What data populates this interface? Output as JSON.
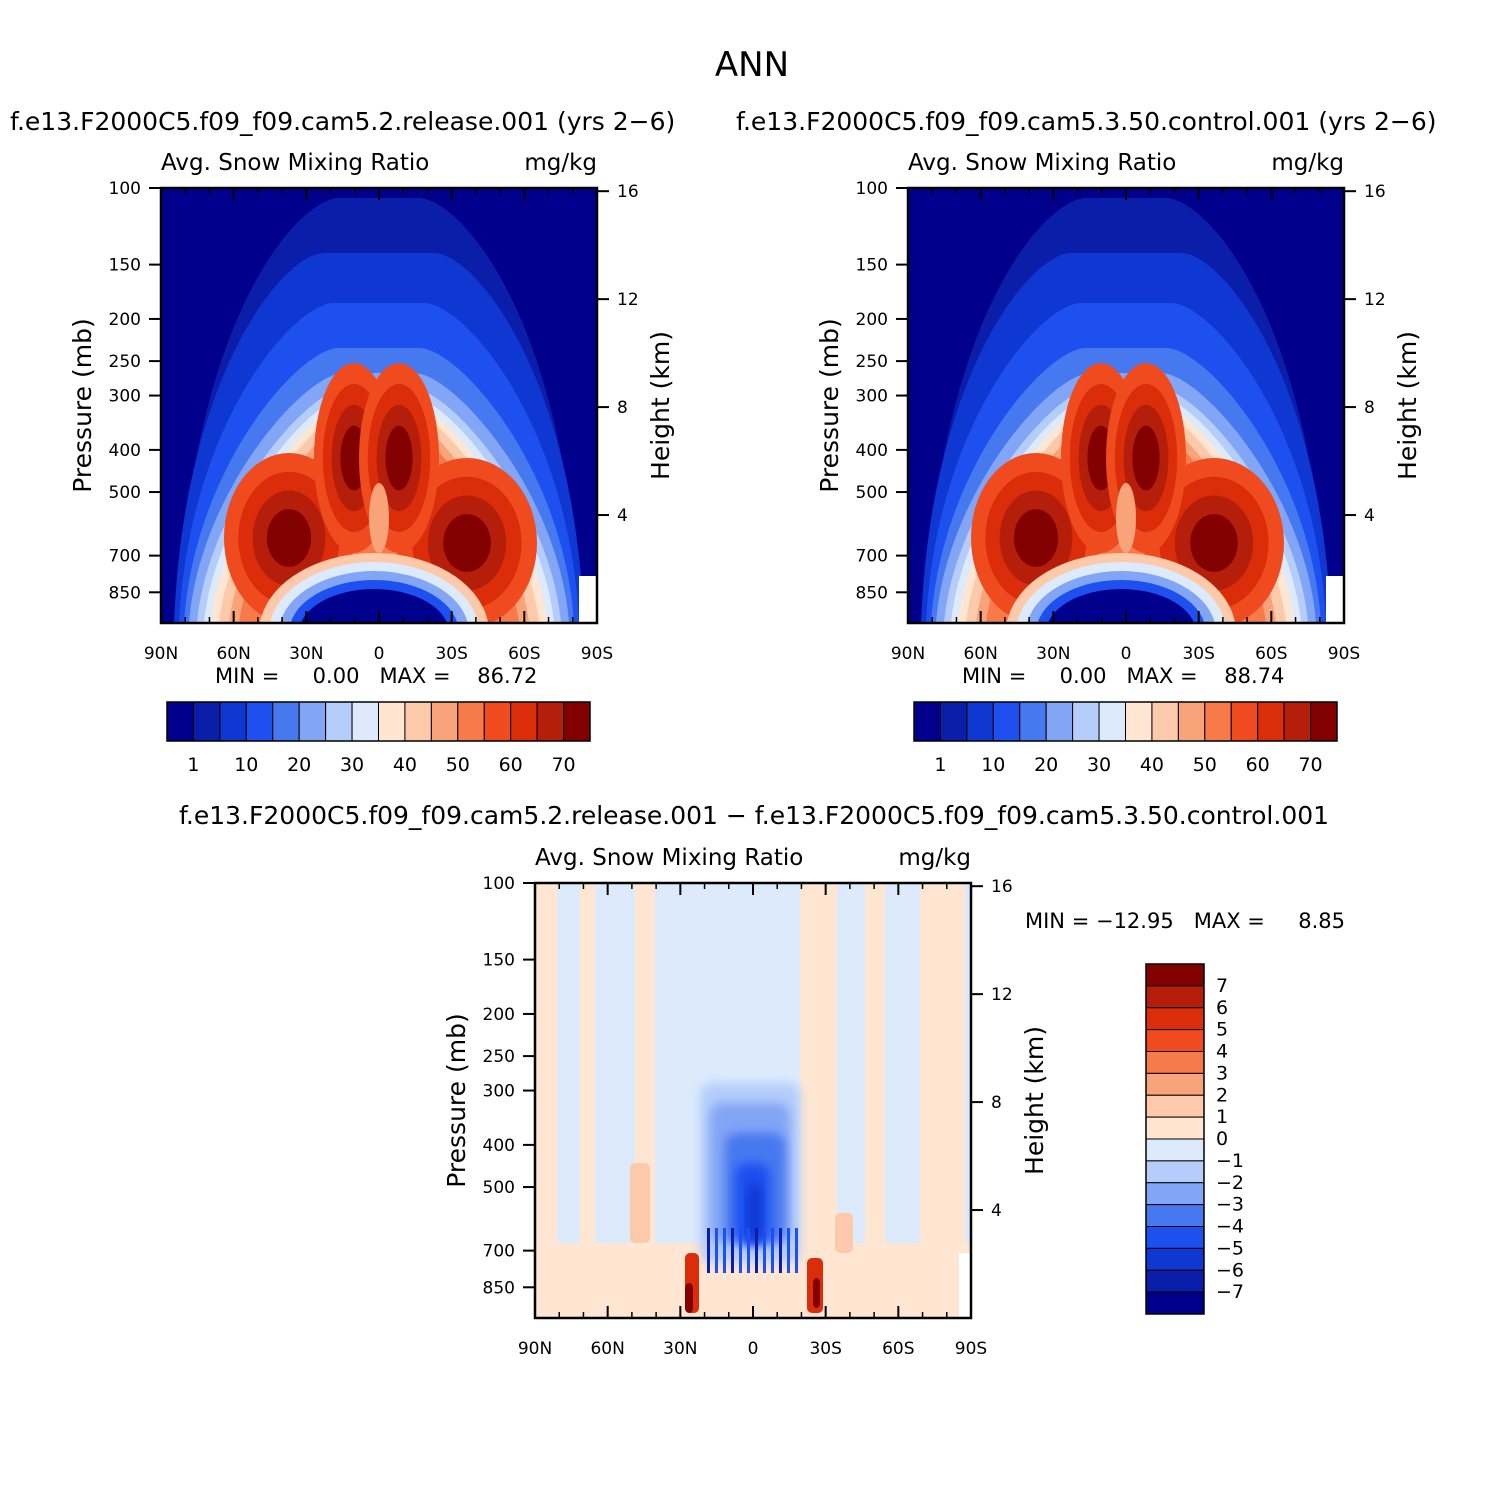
{
  "figure_title": "ANN",
  "colors": {
    "abs_scale": [
      "#00008c",
      "#0a1eaa",
      "#0f37d2",
      "#1e50f0",
      "#4678f0",
      "#82a5f5",
      "#b4cdfa",
      "#dceafc",
      "#fee6d2",
      "#fccaaa",
      "#f9a37a",
      "#f77a4a",
      "#f04b1e",
      "#dc2d0a",
      "#b41e0a",
      "#820000"
    ],
    "diff_scale": [
      "#00008c",
      "#0a1eaa",
      "#0f37d2",
      "#1e50f0",
      "#4678f0",
      "#82a5f5",
      "#b4cdfa",
      "#dceafc",
      "#fee6d2",
      "#fccaaa",
      "#f9a37a",
      "#f77a4a",
      "#f04b1e",
      "#dc2d0a",
      "#b41e0a",
      "#820000"
    ]
  },
  "panels": [
    {
      "title": "f.e13.F2000C5.f09_f09.cam5.2.release.001  (yrs 2−6)",
      "left_label": "Avg. Snow Mixing Ratio",
      "right_label": "mg/kg",
      "y_title": "Pressure (mb)",
      "y2_title": "Height (km)",
      "stats": "MIN =     0.00   MAX =    86.72",
      "colorbar_labels": [
        "1",
        "10",
        "20",
        "30",
        "40",
        "50",
        "60",
        "70"
      ]
    },
    {
      "title": "f.e13.F2000C5.f09_f09.cam5.3.50.control.001  (yrs 2−6)",
      "left_label": "Avg. Snow Mixing Ratio",
      "right_label": "mg/kg",
      "y_title": "Pressure (mb)",
      "y2_title": "Height (km)",
      "stats": "MIN =     0.00   MAX =    88.74",
      "colorbar_labels": [
        "1",
        "10",
        "20",
        "30",
        "40",
        "50",
        "60",
        "70"
      ]
    },
    {
      "title": "f.e13.F2000C5.f09_f09.cam5.2.release.001  −  f.e13.F2000C5.f09_f09.cam5.3.50.control.001",
      "left_label": "Avg. Snow Mixing Ratio",
      "right_label": "mg/kg",
      "y_title": "Pressure (mb)",
      "y2_title": "Height (km)",
      "stats": "MIN = −12.95   MAX =     8.85",
      "colorbar_labels": [
        "7",
        "6",
        "5",
        "4",
        "3",
        "2",
        "1",
        "0",
        "−1",
        "−2",
        "−3",
        "−4",
        "−5",
        "−6",
        "−7"
      ]
    }
  ],
  "chart_data": [
    {
      "type": "heatmap",
      "title": "f.e13.F2000C5.f09_f09.cam5.2.release.001  (yrs 2−6)",
      "xlabel": "",
      "ylabel": "Pressure (mb)",
      "y2label": "Height (km)",
      "x_ticks": [
        "90N",
        "60N",
        "30N",
        "0",
        "30S",
        "60S",
        "90S"
      ],
      "y_ticks": [
        100,
        150,
        200,
        250,
        300,
        400,
        500,
        700,
        850
      ],
      "y2_ticks": [
        16,
        12,
        8,
        4
      ],
      "y_scale": "log",
      "ylim": [
        1000,
        100
      ],
      "units": "mg/kg",
      "min": 0.0,
      "max": 86.72,
      "levels": [
        1,
        5,
        10,
        15,
        20,
        25,
        30,
        35,
        40,
        45,
        50,
        55,
        60,
        65,
        70
      ],
      "features": [
        {
          "desc": "max lobe",
          "lat": -35,
          "p": 550,
          "value": 75
        },
        {
          "desc": "max lobe",
          "lat": 40,
          "p": 600,
          "value": 75
        },
        {
          "desc": "upper cores",
          "lat": 10,
          "p": 400,
          "value": 72
        },
        {
          "desc": "upper cores",
          "lat": -5,
          "p": 400,
          "value": 70
        },
        {
          "desc": "low-level minimum",
          "lat": 0,
          "p": 900,
          "value": 0
        }
      ]
    },
    {
      "type": "heatmap",
      "title": "f.e13.F2000C5.f09_f09.cam5.3.50.control.001  (yrs 2−6)",
      "xlabel": "",
      "ylabel": "Pressure (mb)",
      "y2label": "Height (km)",
      "x_ticks": [
        "90N",
        "60N",
        "30N",
        "0",
        "30S",
        "60S",
        "90S"
      ],
      "y_ticks": [
        100,
        150,
        200,
        250,
        300,
        400,
        500,
        700,
        850
      ],
      "y2_ticks": [
        16,
        12,
        8,
        4
      ],
      "y_scale": "log",
      "ylim": [
        1000,
        100
      ],
      "units": "mg/kg",
      "min": 0.0,
      "max": 88.74,
      "levels": [
        1,
        5,
        10,
        15,
        20,
        25,
        30,
        35,
        40,
        45,
        50,
        55,
        60,
        65,
        70
      ],
      "features": [
        {
          "desc": "max lobe",
          "lat": -35,
          "p": 550,
          "value": 76
        },
        {
          "desc": "max lobe",
          "lat": 40,
          "p": 600,
          "value": 74
        },
        {
          "desc": "upper cores",
          "lat": 10,
          "p": 400,
          "value": 72
        },
        {
          "desc": "upper cores",
          "lat": -5,
          "p": 400,
          "value": 72
        },
        {
          "desc": "low-level minimum",
          "lat": 0,
          "p": 900,
          "value": 0
        }
      ]
    },
    {
      "type": "heatmap",
      "title": "f.e13.F2000C5.f09_f09.cam5.2.release.001  −  f.e13.F2000C5.f09_f09.cam5.3.50.control.001",
      "xlabel": "",
      "ylabel": "Pressure (mb)",
      "y2label": "Height (km)",
      "x_ticks": [
        "90N",
        "60N",
        "30N",
        "0",
        "30S",
        "60S",
        "90S"
      ],
      "y_ticks": [
        100,
        150,
        200,
        250,
        300,
        400,
        500,
        700,
        850
      ],
      "y2_ticks": [
        16,
        12,
        8,
        4
      ],
      "y_scale": "log",
      "ylim": [
        1000,
        100
      ],
      "units": "mg/kg",
      "min": -12.95,
      "max": 8.85,
      "levels": [
        -7,
        -6,
        -5,
        -4,
        -3,
        -2,
        -1,
        0,
        1,
        2,
        3,
        4,
        5,
        6,
        7
      ],
      "features": [
        {
          "desc": "negative core",
          "lat": 0,
          "p": 400,
          "value": -5
        },
        {
          "desc": "negative core",
          "lat": -10,
          "p": 500,
          "value": -5
        },
        {
          "desc": "positive",
          "lat": 30,
          "p": 800,
          "value": 7
        },
        {
          "desc": "positive",
          "lat": -25,
          "p": 800,
          "value": 7
        }
      ]
    }
  ]
}
